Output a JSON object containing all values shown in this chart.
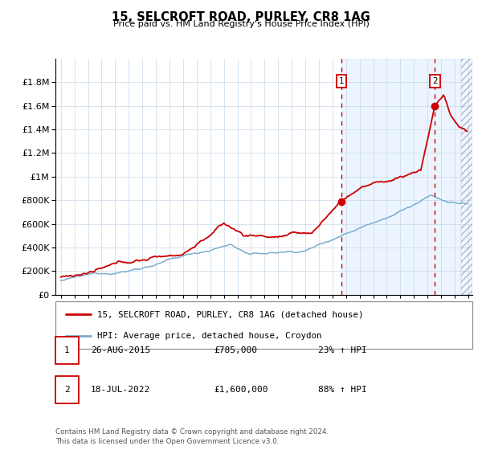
{
  "title": "15, SELCROFT ROAD, PURLEY, CR8 1AG",
  "subtitle": "Price paid vs. HM Land Registry's House Price Index (HPI)",
  "sale1_date": "26-AUG-2015",
  "sale1_price": 785000,
  "sale1_hpi_pct": "23% ↑ HPI",
  "sale2_date": "18-JUL-2022",
  "sale2_price": 1600000,
  "sale2_hpi_pct": "88% ↑ HPI",
  "sale1_x": 2015.65,
  "sale2_x": 2022.54,
  "legend_line1": "15, SELCROFT ROAD, PURLEY, CR8 1AG (detached house)",
  "legend_line2": "HPI: Average price, detached house, Croydon",
  "footer": "Contains HM Land Registry data © Crown copyright and database right 2024.\nThis data is licensed under the Open Government Licence v3.0.",
  "line_color_red": "#cc0000",
  "line_color_blue": "#7aadcf",
  "bg_shade_color": "#ddeeff",
  "ylim_max": 2000000,
  "xlabel_start": 1995,
  "xlabel_end": 2025
}
